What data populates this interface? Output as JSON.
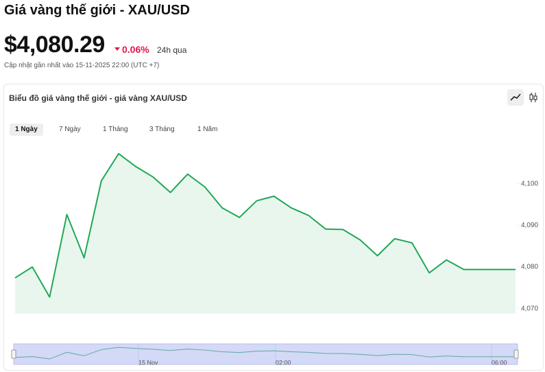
{
  "header": {
    "title": "Giá vàng thế giới - XAU/USD",
    "price": "$4,080.29",
    "change": "0.06%",
    "period": "24h qua",
    "updated": "Cập nhật gần nhất vào 15-11-2025 22:00 (UTC +7)"
  },
  "card": {
    "title": "Biểu đồ giá vàng thế giới - giá vàng XAU/USD",
    "tabs": [
      "1 Ngày",
      "7 Ngày",
      "1 Tháng",
      "3 Tháng",
      "1 Năm"
    ]
  },
  "chart_data": {
    "type": "area",
    "color": "#1fa855",
    "values": [
      4077.4,
      4080.0,
      4072.8,
      4092.6,
      4082.2,
      4100.7,
      4107.2,
      4104.1,
      4101.6,
      4097.9,
      4102.3,
      4099.2,
      4094.2,
      4091.9,
      4095.9,
      4097.0,
      4094.2,
      4092.4,
      4089.1,
      4089.0,
      4086.5,
      4082.7,
      4086.8,
      4085.8,
      4078.6,
      4081.7,
      4079.4,
      4079.4,
      4079.4,
      4079.4
    ],
    "ylim": [
      4068.8,
      4109.5
    ],
    "yticks": [
      {
        "value": 4070,
        "label": "4,070"
      },
      {
        "value": 4080,
        "label": "4,080"
      },
      {
        "value": 4090,
        "label": "4,090"
      },
      {
        "value": 4100,
        "label": "4,100"
      }
    ],
    "navigator_labels": [
      "15 Nov",
      "02:00",
      "06:00"
    ]
  }
}
